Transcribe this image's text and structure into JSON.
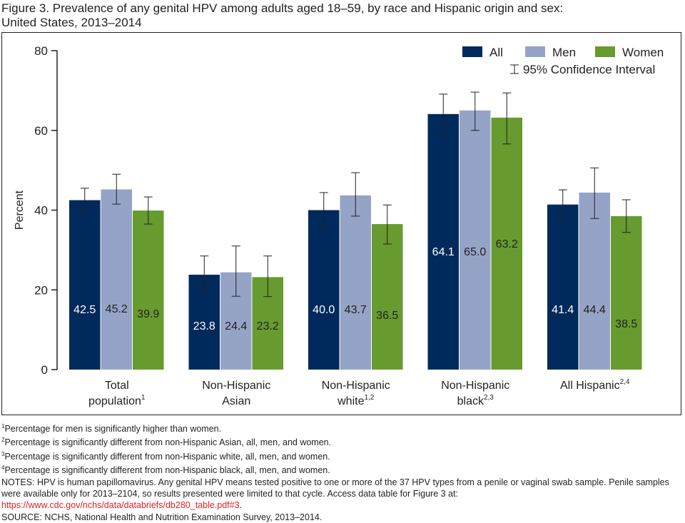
{
  "title_line1": "Figure 3. Prevalence of any genital HPV among adults aged 18–59, by race and Hispanic origin and sex:",
  "title_line2": "United States, 2013–2014",
  "chart_data": {
    "type": "bar",
    "ylabel": "Percent",
    "ylim": [
      0,
      80
    ],
    "yticks": [
      0,
      20,
      40,
      60,
      80
    ],
    "grid": false,
    "legend_placement": "top-right",
    "ci_legend": "95% Confidence Interval",
    "categories": [
      {
        "line1": "Total",
        "line2": "population",
        "sup": "1"
      },
      {
        "line1": "Non-Hispanic",
        "line2": "Asian",
        "sup": ""
      },
      {
        "line1": "Non-Hispanic",
        "line2": "white",
        "sup": "1,2"
      },
      {
        "line1": "Non-Hispanic",
        "line2": "black",
        "sup": "2,3"
      },
      {
        "line1": "",
        "line2": "All Hispanic",
        "sup": "2,4"
      }
    ],
    "series": [
      {
        "name": "All",
        "color": "#002a5c",
        "label_color": "#ffffff",
        "values": [
          42.5,
          23.8,
          40.0,
          64.1,
          41.4
        ],
        "ci_low": [
          39.7,
          19.3,
          35.4,
          58.7,
          37.2
        ],
        "ci_high": [
          45.5,
          28.5,
          44.4,
          69.1,
          45.1
        ]
      },
      {
        "name": "Men",
        "color": "#95a3c7",
        "label_color": "#231f20",
        "values": [
          45.2,
          24.4,
          43.7,
          65.0,
          44.4
        ],
        "ci_low": [
          41.5,
          18.4,
          38.5,
          60.0,
          37.9
        ],
        "ci_high": [
          49.0,
          31.0,
          49.4,
          69.6,
          50.6
        ]
      },
      {
        "name": "Women",
        "color": "#679b2f",
        "label_color": "#231f20",
        "values": [
          39.9,
          23.2,
          36.5,
          63.2,
          38.5
        ],
        "ci_low": [
          36.5,
          18.3,
          31.5,
          56.6,
          34.4
        ],
        "ci_high": [
          43.3,
          28.5,
          41.3,
          69.4,
          42.6
        ]
      }
    ]
  },
  "notes": {
    "n1": "Percentage for men is significantly higher than women.",
    "n2": "Percentage is significantly different from non-Hispanic Asian, all, men, and women.",
    "n3": "Percentage is significantly different from non-Hispanic white, all, men, and women.",
    "n4": "Percentage is significantly different from non-Hispanic black, all, men, and women.",
    "notes_text": "NOTES: HPV is human papillomavirus. Any genital HPV means tested positive to one or more of the 37 HPV types from a penile or vaginal swab sample. Penile samples were available only for 2013–2104, so results presented were limited to that cycle. Access data table for Figure 3 at: ",
    "link": "https://www.cdc.gov/nchs/data/databriefs/db280_table.pdf#3",
    "link_end": ".",
    "source": "SOURCE: NCHS, National Health and Nutrition Examination Survey, 2013–2014."
  }
}
